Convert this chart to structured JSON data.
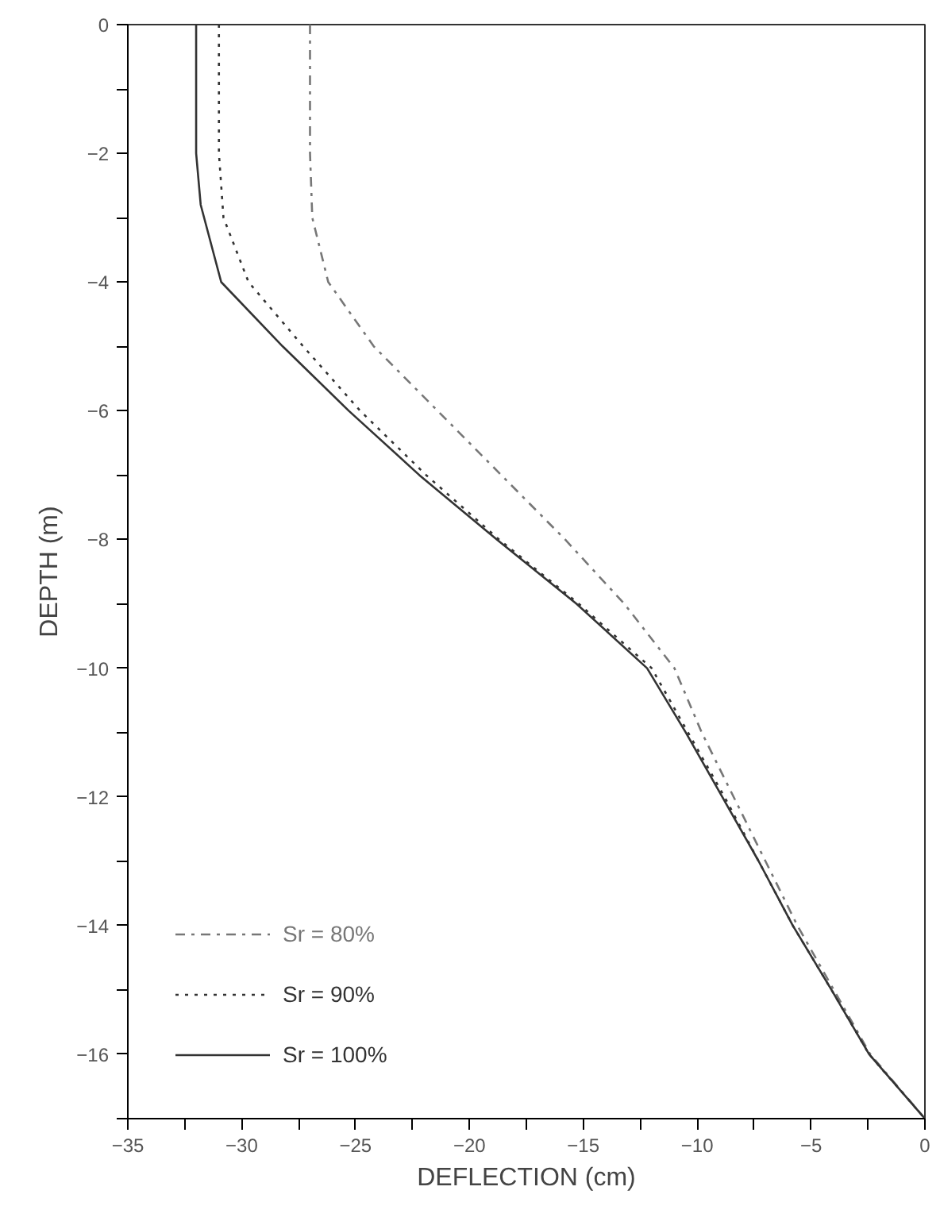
{
  "chart_data": {
    "type": "line",
    "xlabel": "DEFLECTION (cm)",
    "ylabel": "DEPTH (m)",
    "xlim": [
      -35,
      0
    ],
    "ylim": [
      -17,
      0
    ],
    "xticks": [
      -35,
      {
        "value": -32.5,
        "label": null
      },
      -30,
      {
        "value": -27.5,
        "label": null
      },
      -25,
      {
        "value": -22.5,
        "label": null
      },
      -20,
      {
        "value": -17.5,
        "label": null
      },
      -15,
      {
        "value": -12.5,
        "label": null
      },
      -10,
      {
        "value": -7.5,
        "label": null
      },
      -5,
      {
        "value": -2.5,
        "label": null
      },
      0
    ],
    "yticks": [
      0,
      {
        "value": -1,
        "label": null
      },
      -2,
      {
        "value": -3,
        "label": null
      },
      -4,
      {
        "value": -5,
        "label": null
      },
      -6,
      {
        "value": -7,
        "label": null
      },
      -8,
      {
        "value": -9,
        "label": null
      },
      -10,
      {
        "value": -11,
        "label": null
      },
      -12,
      {
        "value": -13,
        "label": null
      },
      -14,
      {
        "value": -15,
        "label": null
      },
      -16,
      {
        "value": -17,
        "label": null
      }
    ],
    "grid": false,
    "legend": "bottom left",
    "marker": "none",
    "series": [
      {
        "name": "Sr = 80%",
        "color": "#777777",
        "line_style": "dashdot",
        "x": [
          -27.0,
          -27.0,
          -26.9,
          -26.2,
          -24.2,
          -21.4,
          -18.6,
          -15.8,
          -13.2,
          -11.0,
          -9.8,
          -8.4,
          -7.0,
          -5.6,
          -4.0,
          -2.4,
          0
        ],
        "values": [
          0,
          -2,
          -3,
          -4,
          -5,
          -6,
          -7,
          -8,
          -9,
          -10,
          -11,
          -12,
          -13,
          -14,
          -15,
          -16,
          -17
        ]
      },
      {
        "name": "Sr = 90%",
        "color": "#333333",
        "line_style": "dotted",
        "x": [
          -31.0,
          -31.0,
          -30.8,
          -29.7,
          -27.3,
          -24.8,
          -21.9,
          -18.7,
          -15.2,
          -12.0,
          -10.4,
          -8.8,
          -7.3,
          -5.8,
          -4.1,
          -2.45,
          0
        ],
        "values": [
          0,
          -2,
          -3,
          -4,
          -5,
          -6,
          -7,
          -8,
          -9,
          -10,
          -11,
          -12,
          -13,
          -14,
          -15,
          -16,
          -17
        ]
      },
      {
        "name": "Sr = 100%",
        "color": "#333333",
        "line_style": "solid",
        "x": [
          -32.0,
          -32.0,
          -31.8,
          -30.9,
          -28.2,
          -25.3,
          -22.2,
          -18.8,
          -15.3,
          -12.2,
          -10.5,
          -8.9,
          -7.3,
          -5.8,
          -4.1,
          -2.45,
          0
        ],
        "values": [
          0,
          -2,
          -2.8,
          -4,
          -5,
          -6,
          -7,
          -8,
          -9,
          -10,
          -11,
          -12,
          -13,
          -14,
          -15,
          -16,
          -17
        ]
      }
    ]
  }
}
